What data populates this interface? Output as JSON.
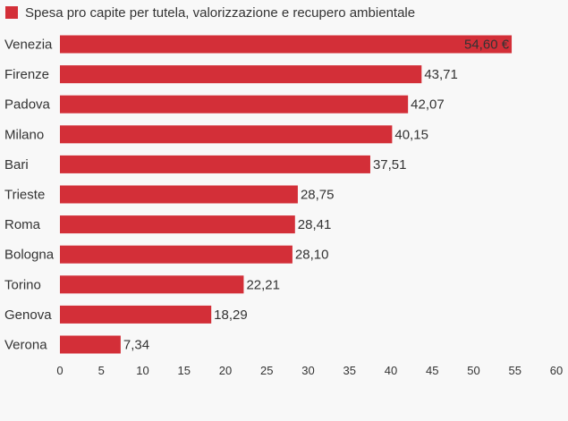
{
  "chart_data": {
    "type": "bar",
    "orientation": "horizontal",
    "categories": [
      "Venezia",
      "Firenze",
      "Padova",
      "Milano",
      "Bari",
      "Trieste",
      "Roma",
      "Bologna",
      "Torino",
      "Genova",
      "Verona"
    ],
    "series": [
      {
        "name": "Spesa pro capite per tutela, valorizzazione e recupero ambientale",
        "values": [
          54.6,
          43.71,
          42.07,
          40.15,
          37.51,
          28.75,
          28.41,
          28.1,
          22.21,
          18.29,
          7.34
        ],
        "data_labels": [
          "54,60 €",
          "43,71",
          "42,07",
          "40,15",
          "37,51",
          "28,75",
          "28,41",
          "28,10",
          "22,21",
          "18,29",
          "7,34"
        ]
      }
    ],
    "xlim": [
      0,
      60
    ],
    "x_ticks": [
      "0",
      "5",
      "10",
      "15",
      "20",
      "25",
      "30",
      "35",
      "40",
      "45",
      "50",
      "55",
      "60"
    ],
    "grid": false,
    "legend_position": "top-left",
    "colors": {
      "bar": "#d32f38",
      "background": "#f8f8f8",
      "text": "#333333"
    }
  }
}
